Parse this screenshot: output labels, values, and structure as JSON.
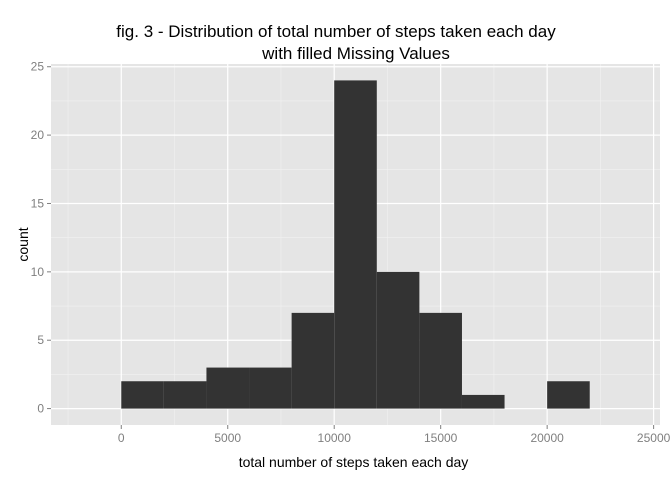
{
  "chart_data": {
    "type": "bar",
    "title_lines": [
      "fig. 3 - Distribution of total number of steps taken each day",
      "with filled Missing Values"
    ],
    "xlabel": "total number of steps taken each day",
    "ylabel": "count",
    "bin_width": 2000,
    "bins": [
      {
        "x0": 0,
        "x1": 2000,
        "count": 2
      },
      {
        "x0": 2000,
        "x1": 4000,
        "count": 2
      },
      {
        "x0": 4000,
        "x1": 6000,
        "count": 3
      },
      {
        "x0": 6000,
        "x1": 8000,
        "count": 3
      },
      {
        "x0": 8000,
        "x1": 10000,
        "count": 7
      },
      {
        "x0": 10000,
        "x1": 12000,
        "count": 24
      },
      {
        "x0": 12000,
        "x1": 14000,
        "count": 10
      },
      {
        "x0": 14000,
        "x1": 16000,
        "count": 7
      },
      {
        "x0": 16000,
        "x1": 18000,
        "count": 1
      },
      {
        "x0": 18000,
        "x1": 20000,
        "count": 0
      },
      {
        "x0": 20000,
        "x1": 22000,
        "count": 2
      }
    ],
    "xlim": [
      -3300,
      25300
    ],
    "ylim": [
      -1.2,
      25.2
    ],
    "xticks": [
      0,
      5000,
      10000,
      15000,
      20000,
      25000
    ],
    "yticks": [
      0,
      5,
      10,
      15,
      20,
      25
    ],
    "grid": true,
    "colors": {
      "panel_background": "#e5e5e5",
      "grid_major": "#ffffff",
      "grid_minor": "#f2f2f2",
      "bar_fill": "#333333",
      "tick_label": "#7f7f7f",
      "tick_mark": "#7f7f7f"
    }
  }
}
